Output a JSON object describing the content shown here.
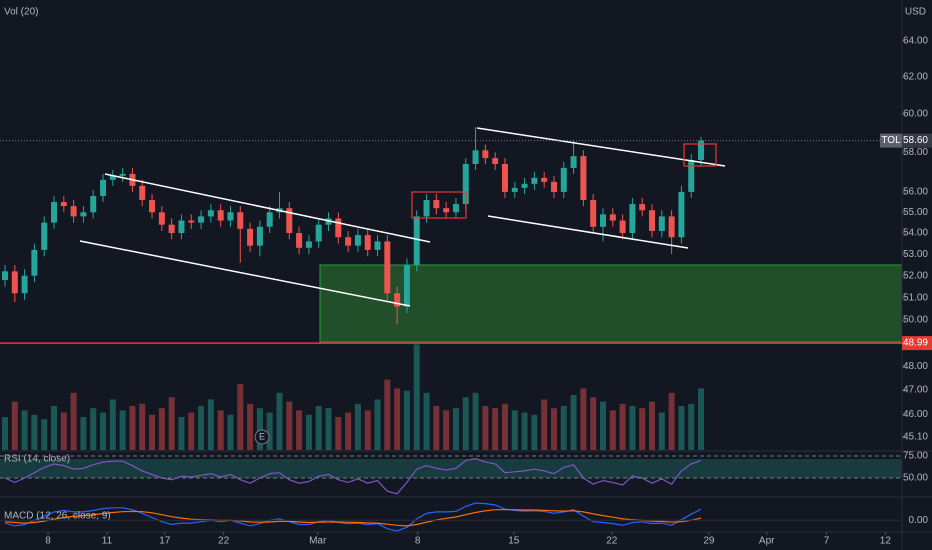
{
  "chart_data": {
    "type": "candlestick",
    "currency": "USD",
    "symbol": "TOL",
    "last": {
      "value": 58.6,
      "label": "58.60"
    },
    "hline": 48.99,
    "log_scale": true,
    "up_color": "#26a69a",
    "down_color": "#ef5350",
    "event_label": "E",
    "xlim": [
      -0.51,
      91.5
    ],
    "xticks": [
      {
        "value": 4.39,
        "label": "8"
      },
      {
        "value": 10.4,
        "label": "11"
      },
      {
        "value": 16.3,
        "label": "17"
      },
      {
        "value": 22.3,
        "label": "22"
      },
      {
        "value": 31.9,
        "label": "Mar"
      },
      {
        "value": 42.1,
        "label": "8"
      },
      {
        "value": 51.9,
        "label": "15"
      },
      {
        "value": 61.9,
        "label": "22"
      },
      {
        "value": 71.8,
        "label": "29"
      },
      {
        "value": 77.7,
        "label": "Apr"
      },
      {
        "value": 83.8,
        "label": "7"
      },
      {
        "value": 89.8,
        "label": "12"
      }
    ],
    "ylim": [
      44.57,
      66.36
    ],
    "yticks": [
      {
        "value": 45.1,
        "label": "45.10"
      },
      {
        "value": 46,
        "label": "46.00"
      },
      {
        "value": 47,
        "label": "47.00"
      },
      {
        "value": 48,
        "label": "48.00"
      },
      {
        "value": 50,
        "label": "50.00"
      },
      {
        "value": 51,
        "label": "51.00"
      },
      {
        "value": 52,
        "label": "52.00"
      },
      {
        "value": 53,
        "label": "53.00"
      },
      {
        "value": 54,
        "label": "54.00"
      },
      {
        "value": 55,
        "label": "55.00"
      },
      {
        "value": 56,
        "label": "56.00"
      },
      {
        "value": 58,
        "label": "58.00"
      },
      {
        "value": 60,
        "label": "60.00"
      },
      {
        "value": 62,
        "label": "62.00"
      },
      {
        "value": 64,
        "label": "64.00"
      }
    ],
    "open": [
      51.8,
      52.2,
      51.2,
      52.0,
      53.2,
      54.5,
      55.5,
      55.3,
      54.8,
      55.0,
      55.8,
      56.6,
      56.8,
      56.9,
      56.3,
      55.6,
      55.0,
      54.4,
      54.0,
      54.6,
      54.5,
      54.8,
      55.1,
      54.6,
      55.0,
      54.2,
      53.4,
      54.3,
      55.0,
      55.2,
      54.0,
      53.3,
      53.6,
      54.4,
      54.7,
      53.8,
      53.4,
      53.9,
      53.2,
      53.6,
      51.2,
      50.6,
      52.5,
      54.8,
      55.6,
      55.2,
      55.0,
      55.4,
      57.4,
      58.1,
      57.7,
      57.4,
      56.0,
      56.2,
      56.4,
      56.7,
      56.5,
      56.0,
      57.2,
      57.8,
      55.6,
      54.3,
      54.9,
      54.6,
      54.0,
      55.4,
      55.1,
      54.1,
      54.8,
      53.8,
      56.0,
      57.6
    ],
    "high": [
      52.5,
      52.5,
      52.3,
      53.5,
      54.8,
      55.8,
      55.8,
      55.6,
      55.3,
      56.1,
      56.9,
      57.1,
      57.2,
      57.2,
      56.6,
      55.9,
      55.3,
      54.7,
      54.9,
      54.9,
      55.1,
      55.4,
      55.4,
      55.3,
      55.3,
      54.5,
      54.6,
      55.3,
      56.0,
      55.5,
      54.3,
      53.9,
      54.7,
      55.0,
      55.0,
      54.1,
      54.2,
      54.2,
      53.9,
      53.9,
      51.5,
      52.8,
      55.1,
      55.9,
      55.9,
      55.5,
      55.7,
      57.7,
      59.3,
      58.4,
      58.0,
      57.7,
      56.5,
      56.7,
      57.0,
      57.0,
      56.8,
      57.5,
      58.6,
      58.1,
      55.9,
      55.2,
      55.2,
      54.9,
      55.7,
      55.7,
      55.4,
      55.1,
      55.1,
      56.3,
      57.9,
      58.8
    ],
    "low": [
      51.5,
      50.8,
      50.9,
      51.7,
      52.9,
      54.2,
      55.0,
      54.5,
      54.5,
      54.7,
      55.5,
      56.3,
      56.5,
      56.0,
      55.3,
      54.7,
      54.1,
      53.7,
      53.7,
      54.2,
      54.2,
      54.5,
      54.3,
      54.3,
      52.6,
      53.1,
      52.9,
      54.0,
      54.7,
      53.7,
      53.0,
      53.0,
      53.3,
      54.1,
      53.5,
      53.1,
      53.1,
      52.9,
      52.9,
      50.9,
      49.8,
      50.3,
      52.2,
      54.5,
      54.9,
      54.7,
      54.7,
      55.1,
      57.1,
      57.4,
      57.1,
      55.7,
      55.7,
      55.9,
      56.1,
      56.2,
      55.7,
      55.7,
      56.9,
      55.3,
      54.0,
      53.6,
      54.3,
      53.7,
      53.7,
      54.8,
      53.8,
      53.8,
      53.0,
      53.5,
      55.7,
      57.3
    ],
    "close": [
      52.2,
      51.2,
      52.0,
      53.2,
      54.5,
      55.5,
      55.3,
      54.8,
      55.0,
      55.8,
      56.6,
      56.8,
      56.9,
      56.3,
      55.6,
      55.0,
      54.4,
      54.0,
      54.6,
      54.5,
      54.8,
      55.1,
      54.6,
      55.0,
      54.2,
      53.4,
      54.3,
      55.0,
      55.2,
      54.0,
      53.3,
      53.6,
      54.4,
      54.7,
      53.8,
      53.4,
      53.9,
      53.2,
      53.6,
      51.2,
      50.6,
      52.5,
      54.8,
      55.6,
      55.2,
      55.0,
      55.4,
      57.4,
      58.1,
      57.7,
      57.4,
      56.0,
      56.2,
      56.4,
      56.7,
      56.5,
      56.0,
      57.2,
      57.8,
      55.6,
      54.3,
      54.9,
      54.6,
      54.0,
      55.4,
      55.1,
      54.1,
      54.8,
      53.8,
      56.0,
      57.6,
      58.6
    ],
    "volume": {
      "label": "Vol (20)",
      "ylim": [
        0,
        500
      ],
      "values": [
        150,
        220,
        180,
        160,
        140,
        200,
        170,
        260,
        150,
        190,
        170,
        230,
        180,
        200,
        210,
        160,
        190,
        240,
        150,
        170,
        200,
        230,
        180,
        160,
        300,
        210,
        190,
        170,
        260,
        220,
        180,
        160,
        200,
        190,
        150,
        170,
        210,
        180,
        230,
        320,
        280,
        270,
        480,
        260,
        200,
        180,
        190,
        240,
        260,
        200,
        190,
        210,
        180,
        170,
        160,
        230,
        190,
        200,
        250,
        280,
        240,
        220,
        180,
        210,
        200,
        190,
        220,
        170,
        260,
        200,
        210,
        280
      ]
    },
    "rsi": {
      "label": "RSI (14, close)",
      "color": "#7e57c2",
      "ylim": [
        29.5,
        79.5
      ],
      "yticks": [
        {
          "value": 75,
          "label": "75.00"
        },
        {
          "value": 50,
          "label": "50.00"
        }
      ],
      "values": [
        50,
        45,
        50,
        56,
        62,
        66,
        64,
        60,
        61,
        65,
        68,
        69,
        69,
        64,
        58,
        54,
        50,
        48,
        52,
        51,
        53,
        55,
        51,
        54,
        48,
        44,
        50,
        55,
        56,
        48,
        44,
        46,
        52,
        54,
        48,
        45,
        49,
        44,
        47,
        35,
        32,
        45,
        60,
        64,
        61,
        59,
        61,
        70,
        72,
        68,
        66,
        56,
        57,
        58,
        60,
        58,
        55,
        62,
        65,
        50,
        43,
        47,
        45,
        42,
        52,
        50,
        44,
        49,
        43,
        58,
        66,
        70
      ]
    },
    "macd": {
      "label": "MACD (12, 26, close, 9)",
      "ylim": [
        -0.42,
        0.8
      ],
      "yticks": [
        {
          "value": 0,
          "label": "0.00"
        }
      ],
      "macd_color": "#2962ff",
      "signal_color": "#ff6d00",
      "macd": [
        -0.1,
        -0.2,
        -0.15,
        0,
        0.15,
        0.3,
        0.35,
        0.3,
        0.3,
        0.35,
        0.42,
        0.45,
        0.45,
        0.38,
        0.25,
        0.1,
        -0.05,
        -0.15,
        -0.1,
        -0.1,
        -0.05,
        0,
        -0.05,
        0,
        -0.1,
        -0.2,
        -0.12,
        0,
        0.05,
        -0.05,
        -0.15,
        -0.15,
        -0.05,
        0,
        -0.08,
        -0.12,
        -0.1,
        -0.15,
        -0.12,
        -0.3,
        -0.38,
        -0.25,
        0.05,
        0.25,
        0.3,
        0.3,
        0.32,
        0.5,
        0.62,
        0.6,
        0.55,
        0.4,
        0.35,
        0.33,
        0.34,
        0.32,
        0.25,
        0.3,
        0.38,
        0.15,
        -0.05,
        -0.08,
        -0.12,
        -0.18,
        -0.08,
        -0.05,
        -0.12,
        -0.1,
        -0.18,
        0.02,
        0.22,
        0.4
      ],
      "signal": [
        -0.05,
        -0.08,
        -0.1,
        -0.08,
        -0.03,
        0.04,
        0.1,
        0.14,
        0.17,
        0.2,
        0.24,
        0.28,
        0.31,
        0.32,
        0.31,
        0.27,
        0.2,
        0.13,
        0.08,
        0.04,
        0.02,
        0.01,
        0,
        0,
        -0.02,
        -0.06,
        -0.07,
        -0.06,
        -0.04,
        -0.04,
        -0.06,
        -0.08,
        -0.07,
        -0.06,
        -0.06,
        -0.07,
        -0.08,
        -0.09,
        -0.1,
        -0.14,
        -0.18,
        -0.2,
        -0.15,
        -0.07,
        0.01,
        0.07,
        0.12,
        0.2,
        0.28,
        0.34,
        0.38,
        0.38,
        0.38,
        0.37,
        0.37,
        0.36,
        0.34,
        0.33,
        0.34,
        0.3,
        0.23,
        0.17,
        0.11,
        0.05,
        0.02,
        0,
        -0.03,
        -0.04,
        -0.07,
        -0.05,
        0,
        0.08
      ]
    }
  }
}
